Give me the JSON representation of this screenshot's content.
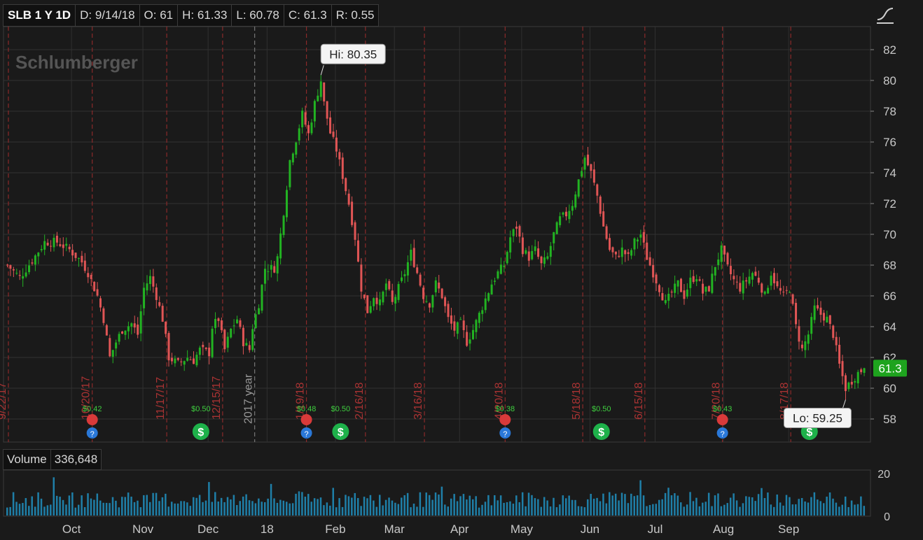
{
  "header": {
    "symbol": "SLB 1 Y 1D",
    "date": "D: 9/14/18",
    "open": "O: 61",
    "high": "H: 61.33",
    "low": "L: 60.78",
    "close": "C: 61.3",
    "range": "R: 0.55"
  },
  "volume": {
    "label": "Volume",
    "value": "336,648"
  },
  "colors": {
    "up": "#22b322",
    "down": "#e05555",
    "volume": "#1f7fa8",
    "grid": "#333333",
    "background": "#1a1a1a",
    "last_price": "#1ea31e"
  },
  "chart_data": {
    "type": "candlestick",
    "watermark": "Schlumberger",
    "x_labels": [
      "Oct",
      "Nov",
      "Dec",
      "18",
      "Feb",
      "Mar",
      "Apr",
      "May",
      "Jun",
      "Jul",
      "Aug",
      "Sep"
    ],
    "y_ticks": [
      "58",
      "60",
      "62",
      "64",
      "66",
      "68",
      "70",
      "72",
      "74",
      "76",
      "78",
      "80",
      "82"
    ],
    "y_range": [
      56.5,
      83.5
    ],
    "volume_ticks": [
      "20",
      "0"
    ],
    "high_label": "Hi: 80.35",
    "low_label": "Lo: 59.25",
    "last_price": "61.3",
    "year_marker": "2017 year",
    "event_dates": [
      "9/22/17",
      "10/20/17",
      "11/17/17",
      "12/15/17",
      "1/19/18",
      "2/16/18",
      "3/16/18",
      "4/20/18",
      "5/18/18",
      "6/15/18",
      "7/20/18",
      "8/17/18"
    ],
    "dividends": [
      "$0.42",
      "$0.50",
      "$0.48",
      "$0.50",
      "$0.38",
      "$0.50",
      "$0.43"
    ],
    "close_path": [
      [
        0,
        68.0
      ],
      [
        4,
        67.2
      ],
      [
        8,
        68.3
      ],
      [
        12,
        69.5
      ],
      [
        16,
        69.5
      ],
      [
        20,
        69.0
      ],
      [
        24,
        68.2
      ],
      [
        26,
        67.5
      ],
      [
        29,
        66.0
      ],
      [
        31,
        64.5
      ],
      [
        33,
        62.0
      ],
      [
        35,
        63.0
      ],
      [
        37,
        63.8
      ],
      [
        40,
        64.2
      ],
      [
        42,
        63.5
      ],
      [
        44,
        66.5
      ],
      [
        46,
        67.2
      ],
      [
        48,
        66.0
      ],
      [
        50,
        64.5
      ],
      [
        52,
        62.0
      ],
      [
        55,
        61.6
      ],
      [
        58,
        62.0
      ],
      [
        60,
        61.8
      ],
      [
        62,
        62.5
      ],
      [
        65,
        62.3
      ],
      [
        66,
        64.0
      ],
      [
        68,
        64.5
      ],
      [
        70,
        62.5
      ],
      [
        72,
        63.8
      ],
      [
        74,
        64.5
      ],
      [
        76,
        63.0
      ],
      [
        78,
        62.5
      ],
      [
        79,
        64.0
      ],
      [
        81,
        65.5
      ],
      [
        83,
        67.8
      ],
      [
        86,
        67.8
      ],
      [
        87,
        68.5
      ],
      [
        89,
        71.5
      ],
      [
        91,
        74.8
      ],
      [
        93,
        76.2
      ],
      [
        95,
        77.8
      ],
      [
        97,
        76.5
      ],
      [
        99,
        78.5
      ],
      [
        101,
        80.0
      ],
      [
        102,
        78.5
      ],
      [
        104,
        76.6
      ],
      [
        106,
        75.5
      ],
      [
        108,
        73.8
      ],
      [
        110,
        72.0
      ],
      [
        112,
        69.8
      ],
      [
        114,
        66.5
      ],
      [
        116,
        65.0
      ],
      [
        118,
        66.0
      ],
      [
        120,
        65.5
      ],
      [
        122,
        66.8
      ],
      [
        124,
        65.5
      ],
      [
        126,
        66.5
      ],
      [
        128,
        67.5
      ],
      [
        130,
        68.8
      ],
      [
        132,
        67.5
      ],
      [
        134,
        66.0
      ],
      [
        136,
        65.5
      ],
      [
        138,
        66.8
      ],
      [
        140,
        66.0
      ],
      [
        142,
        64.5
      ],
      [
        144,
        63.8
      ],
      [
        146,
        64.2
      ],
      [
        148,
        63.0
      ],
      [
        150,
        63.8
      ],
      [
        152,
        64.8
      ],
      [
        154,
        65.8
      ],
      [
        156,
        66.8
      ],
      [
        158,
        67.5
      ],
      [
        160,
        68.0
      ],
      [
        162,
        69.8
      ],
      [
        164,
        70.5
      ],
      [
        166,
        69.0
      ],
      [
        168,
        68.5
      ],
      [
        170,
        69.0
      ],
      [
        172,
        68.0
      ],
      [
        174,
        68.5
      ],
      [
        176,
        70.0
      ],
      [
        178,
        71.0
      ],
      [
        180,
        71.3
      ],
      [
        182,
        72.0
      ],
      [
        184,
        73.5
      ],
      [
        186,
        75.0
      ],
      [
        188,
        74.0
      ],
      [
        190,
        72.5
      ],
      [
        192,
        70.5
      ],
      [
        194,
        69.0
      ],
      [
        196,
        68.5
      ],
      [
        198,
        69.0
      ],
      [
        200,
        68.5
      ],
      [
        202,
        69.5
      ],
      [
        204,
        70.0
      ],
      [
        206,
        68.5
      ],
      [
        208,
        67.5
      ],
      [
        210,
        66.5
      ],
      [
        212,
        65.5
      ],
      [
        214,
        66.2
      ],
      [
        216,
        66.8
      ],
      [
        218,
        66.0
      ],
      [
        220,
        67.0
      ],
      [
        222,
        67.3
      ],
      [
        224,
        66.2
      ],
      [
        226,
        66.5
      ],
      [
        228,
        68.0
      ],
      [
        230,
        69.0
      ],
      [
        232,
        67.8
      ],
      [
        234,
        67.0
      ],
      [
        236,
        66.5
      ],
      [
        238,
        67.0
      ],
      [
        240,
        67.5
      ],
      [
        242,
        67.0
      ],
      [
        244,
        66.0
      ],
      [
        246,
        67.5
      ],
      [
        248,
        66.5
      ],
      [
        250,
        66.0
      ],
      [
        252,
        66.5
      ],
      [
        254,
        64.0
      ],
      [
        256,
        62.5
      ],
      [
        258,
        63.5
      ],
      [
        260,
        65.2
      ],
      [
        262,
        64.8
      ],
      [
        264,
        64.5
      ],
      [
        266,
        63.5
      ],
      [
        268,
        61.5
      ],
      [
        270,
        60.0
      ],
      [
        272,
        60.5
      ],
      [
        274,
        61.0
      ],
      [
        276,
        61.3
      ]
    ],
    "ohlc_last": {
      "open": 61,
      "high": 61.33,
      "low": 60.78,
      "close": 61.3
    }
  }
}
